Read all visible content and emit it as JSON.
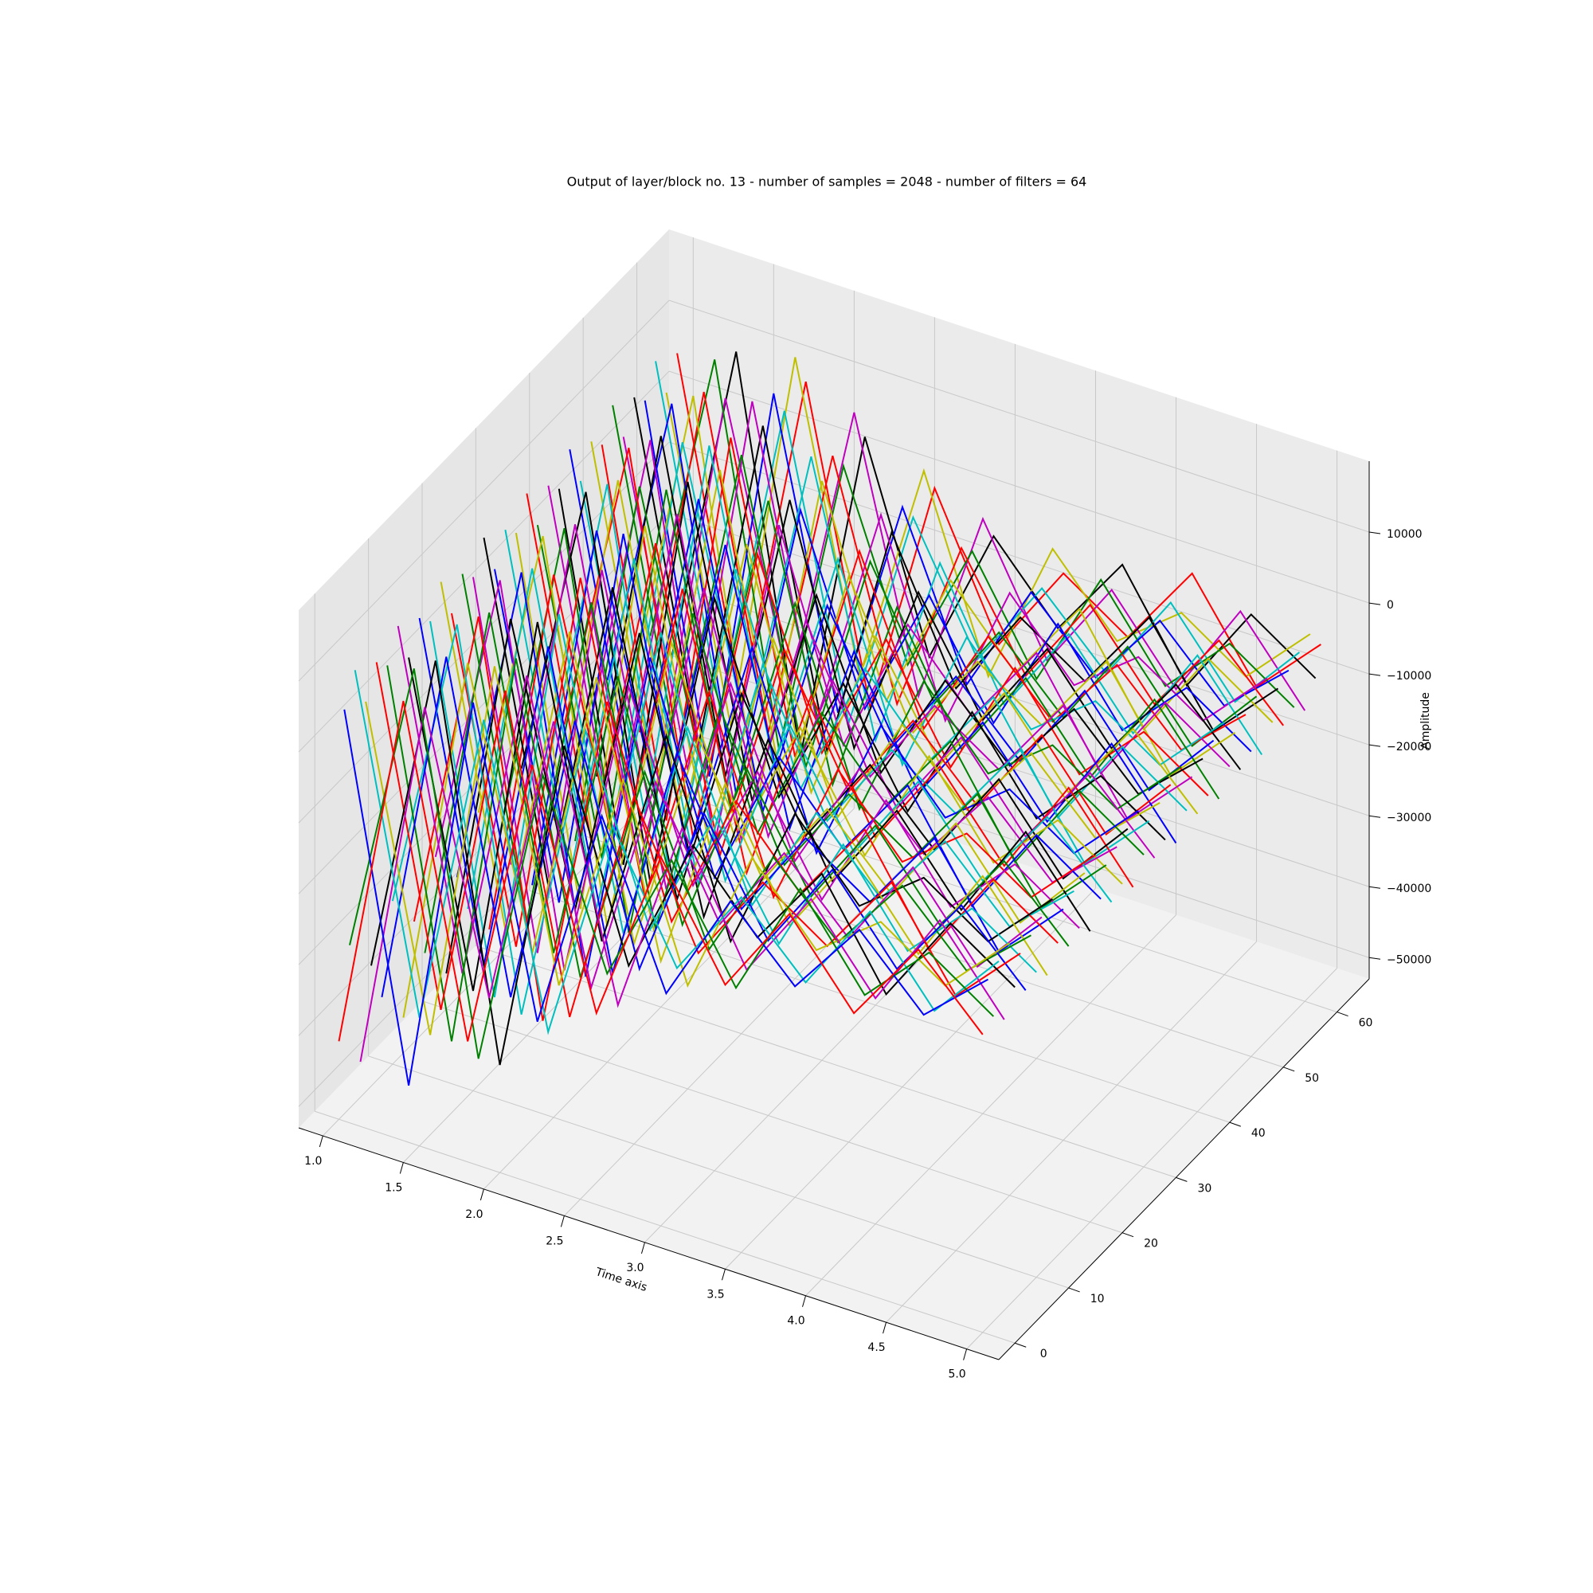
{
  "chart_data": {
    "type": "line3d",
    "title": "Output of layer/block no. 13 - number of samples = 2048 - number of filters = 64",
    "xlabel": "Time axis",
    "zlabel": "Amplitude",
    "xlim": [
      0.85,
      5.2
    ],
    "ylim": [
      -3,
      66
    ],
    "zlim": [
      -53000,
      20000
    ],
    "xticks": [
      {
        "value": 1,
        "label": "1.0"
      },
      {
        "value": 1.5,
        "label": "1.5"
      },
      {
        "value": 2,
        "label": "2.0"
      },
      {
        "value": 2.5,
        "label": "2.5"
      },
      {
        "value": 3,
        "label": "3.0"
      },
      {
        "value": 3.5,
        "label": "3.5"
      },
      {
        "value": 4,
        "label": "4.0"
      },
      {
        "value": 4.5,
        "label": "4.5"
      },
      {
        "value": 5,
        "label": "5.0"
      }
    ],
    "yticks": [
      0,
      10,
      20,
      30,
      40,
      50,
      60
    ],
    "zticks": [
      {
        "value": -50000,
        "label": "−50000"
      },
      {
        "value": -40000,
        "label": "−40000"
      },
      {
        "value": -30000,
        "label": "−30000"
      },
      {
        "value": -20000,
        "label": "−20000"
      },
      {
        "value": -10000,
        "label": "−10000"
      },
      0,
      10000
    ],
    "grid": true,
    "x": [
      1,
      1.4,
      1.8,
      2.2,
      2.6,
      3,
      3.4,
      3.8,
      4.2,
      4.6,
      5
    ],
    "series": [
      {
        "filter": 0,
        "color": "#ff0000",
        "values": [
          -42000,
          9000,
          -36000,
          6000,
          -26000,
          -1000,
          -16000,
          -3000,
          -14000,
          -2000,
          -11000
        ]
      },
      {
        "filter": 1,
        "color": "#0000ff",
        "values": [
          4000,
          -46000,
          11000,
          -31000,
          1000,
          -21000,
          -5000,
          -14000,
          -3000,
          -12000,
          -4000
        ]
      },
      {
        "filter": 2,
        "color": "#008000",
        "values": [
          -30000,
          12000,
          -40000,
          3000,
          -22000,
          -3000,
          -18000,
          -1000,
          -13000,
          -4000,
          -10000
        ]
      },
      {
        "filter": 3,
        "color": "#00bfbf",
        "values": [
          8000,
          -38000,
          7000,
          -34000,
          -2000,
          -19000,
          -6000,
          -15000,
          -2000,
          -13000,
          -3000
        ]
      },
      {
        "filter": 4,
        "color": "#bf00bf",
        "values": [
          -48000,
          5000,
          -33000,
          9000,
          -28000,
          0,
          -17000,
          -4000,
          -15000,
          -1000,
          -12000
        ]
      },
      {
        "filter": 5,
        "color": "#bfbf00",
        "values": [
          2000,
          -42000,
          13000,
          -29000,
          3000,
          -23000,
          -2000,
          -12000,
          -5000,
          -11000,
          -2000
        ]
      },
      {
        "filter": 6,
        "color": "#000000",
        "values": [
          -36000,
          10000,
          -44000,
          4000,
          -24000,
          -4000,
          -14000,
          -2000,
          -16000,
          -3000,
          -9000
        ]
      },
      {
        "filter": 7,
        "color": "#ff0000",
        "values": [
          6000,
          -40000,
          8000,
          -35000,
          -1000,
          -20000,
          -7000,
          -13000,
          -1000,
          -14000,
          -5000
        ]
      },
      {
        "filter": 8,
        "color": "#0000ff",
        "values": [
          -42000,
          9000,
          -36000,
          6000,
          -26000,
          -1000,
          -16000,
          -3000,
          -14000,
          -2000,
          -11000
        ]
      },
      {
        "filter": 9,
        "color": "#008000",
        "values": [
          4000,
          -46000,
          11000,
          -31000,
          1000,
          -21000,
          -5000,
          -14000,
          -3000,
          -12000,
          -4000
        ]
      },
      {
        "filter": 10,
        "color": "#00bfbf",
        "values": [
          -30000,
          12000,
          -40000,
          3000,
          -22000,
          -3000,
          -18000,
          -1000,
          -13000,
          -4000,
          -10000
        ]
      },
      {
        "filter": 11,
        "color": "#bf00bf",
        "values": [
          8000,
          -38000,
          7000,
          -34000,
          -2000,
          -19000,
          -6000,
          -15000,
          -2000,
          -13000,
          -3000
        ]
      },
      {
        "filter": 12,
        "color": "#bfbf00",
        "values": [
          -48000,
          5000,
          -33000,
          9000,
          -28000,
          0,
          -17000,
          -4000,
          -15000,
          -1000,
          -12000
        ]
      },
      {
        "filter": 13,
        "color": "#000000",
        "values": [
          2000,
          -42000,
          13000,
          -29000,
          3000,
          -23000,
          -2000,
          -12000,
          -5000,
          -11000,
          -2000
        ]
      },
      {
        "filter": 14,
        "color": "#ff0000",
        "values": [
          -36000,
          10000,
          -44000,
          4000,
          -24000,
          -4000,
          -14000,
          -2000,
          -16000,
          -3000,
          -9000
        ]
      },
      {
        "filter": 15,
        "color": "#0000ff",
        "values": [
          6000,
          -40000,
          8000,
          -35000,
          -1000,
          -20000,
          -7000,
          -13000,
          -1000,
          -14000,
          -5000
        ]
      },
      {
        "filter": 16,
        "color": "#008000",
        "values": [
          -42000,
          9000,
          -36000,
          6000,
          -26000,
          -1000,
          -16000,
          -3000,
          -14000,
          -2000,
          -11000
        ]
      },
      {
        "filter": 17,
        "color": "#00bfbf",
        "values": [
          4000,
          -46000,
          11000,
          -31000,
          1000,
          -21000,
          -5000,
          -14000,
          -3000,
          -12000,
          -4000
        ]
      },
      {
        "filter": 18,
        "color": "#bf00bf",
        "values": [
          -30000,
          12000,
          -40000,
          3000,
          -22000,
          -3000,
          -18000,
          -1000,
          -13000,
          -4000,
          -10000
        ]
      },
      {
        "filter": 19,
        "color": "#bfbf00",
        "values": [
          8000,
          -38000,
          7000,
          -34000,
          -2000,
          -19000,
          -6000,
          -15000,
          -2000,
          -13000,
          -3000
        ]
      },
      {
        "filter": 20,
        "color": "#000000",
        "values": [
          -48000,
          5000,
          -33000,
          9000,
          -28000,
          0,
          -17000,
          -4000,
          -15000,
          -1000,
          -12000
        ]
      },
      {
        "filter": 21,
        "color": "#ff0000",
        "values": [
          2000,
          -42000,
          13000,
          -29000,
          3000,
          -23000,
          -2000,
          -12000,
          -5000,
          -11000,
          -2000
        ]
      },
      {
        "filter": 22,
        "color": "#0000ff",
        "values": [
          -36000,
          10000,
          -44000,
          4000,
          -24000,
          -4000,
          -14000,
          -2000,
          -16000,
          -3000,
          -9000
        ]
      },
      {
        "filter": 23,
        "color": "#008000",
        "values": [
          6000,
          -40000,
          8000,
          -35000,
          -1000,
          -20000,
          -7000,
          -13000,
          -1000,
          -14000,
          -5000
        ]
      },
      {
        "filter": 24,
        "color": "#00bfbf",
        "values": [
          -42000,
          9000,
          -36000,
          6000,
          -26000,
          -1000,
          -16000,
          -3000,
          -14000,
          -2000,
          -11000
        ]
      },
      {
        "filter": 25,
        "color": "#bf00bf",
        "values": [
          4000,
          -46000,
          11000,
          -31000,
          1000,
          -21000,
          -5000,
          -14000,
          -3000,
          -12000,
          -4000
        ]
      },
      {
        "filter": 26,
        "color": "#bfbf00",
        "values": [
          -30000,
          12000,
          -40000,
          3000,
          -22000,
          -3000,
          -18000,
          -1000,
          -13000,
          -4000,
          -10000
        ]
      },
      {
        "filter": 27,
        "color": "#000000",
        "values": [
          8000,
          -38000,
          7000,
          -34000,
          -2000,
          -19000,
          -6000,
          -15000,
          -2000,
          -13000,
          -3000
        ]
      },
      {
        "filter": 28,
        "color": "#ff0000",
        "values": [
          -48000,
          5000,
          -33000,
          9000,
          -28000,
          0,
          -17000,
          -4000,
          -15000,
          -1000,
          -12000
        ]
      },
      {
        "filter": 29,
        "color": "#0000ff",
        "values": [
          2000,
          -42000,
          13000,
          -29000,
          3000,
          -23000,
          -2000,
          -12000,
          -5000,
          -11000,
          -2000
        ]
      },
      {
        "filter": 30,
        "color": "#008000",
        "values": [
          -36000,
          10000,
          -44000,
          4000,
          -24000,
          -4000,
          -14000,
          -2000,
          -16000,
          -3000,
          -9000
        ]
      },
      {
        "filter": 31,
        "color": "#00bfbf",
        "values": [
          6000,
          -40000,
          8000,
          -35000,
          -1000,
          -20000,
          -7000,
          -13000,
          -1000,
          -14000,
          -5000
        ]
      },
      {
        "filter": 32,
        "color": "#bf00bf",
        "values": [
          -42000,
          9000,
          -36000,
          6000,
          -26000,
          -1000,
          -16000,
          -3000,
          -14000,
          -2000,
          -11000
        ]
      },
      {
        "filter": 33,
        "color": "#bfbf00",
        "values": [
          4000,
          -46000,
          11000,
          -31000,
          1000,
          -21000,
          -5000,
          -14000,
          -3000,
          -12000,
          -4000
        ]
      },
      {
        "filter": 34,
        "color": "#000000",
        "values": [
          -30000,
          12000,
          -40000,
          3000,
          -22000,
          -3000,
          -18000,
          -1000,
          -13000,
          -4000,
          -10000
        ]
      },
      {
        "filter": 35,
        "color": "#ff0000",
        "values": [
          8000,
          -38000,
          7000,
          -34000,
          -2000,
          -19000,
          -6000,
          -15000,
          -2000,
          -13000,
          -3000
        ]
      },
      {
        "filter": 36,
        "color": "#0000ff",
        "values": [
          -48000,
          5000,
          -33000,
          9000,
          -28000,
          0,
          -17000,
          -4000,
          -15000,
          -1000,
          -12000
        ]
      },
      {
        "filter": 37,
        "color": "#008000",
        "values": [
          2000,
          -42000,
          13000,
          -29000,
          3000,
          -23000,
          -2000,
          -12000,
          -5000,
          -11000,
          -2000
        ]
      },
      {
        "filter": 38,
        "color": "#00bfbf",
        "values": [
          -36000,
          10000,
          -44000,
          4000,
          -24000,
          -4000,
          -14000,
          -2000,
          -16000,
          -3000,
          -9000
        ]
      },
      {
        "filter": 39,
        "color": "#bf00bf",
        "values": [
          6000,
          -40000,
          8000,
          -35000,
          -1000,
          -20000,
          -7000,
          -13000,
          -1000,
          -14000,
          -5000
        ]
      },
      {
        "filter": 40,
        "color": "#bfbf00",
        "values": [
          -42000,
          9000,
          -36000,
          6000,
          -26000,
          -1000,
          -16000,
          -3000,
          -14000,
          -2000,
          -11000
        ]
      },
      {
        "filter": 41,
        "color": "#000000",
        "values": [
          4000,
          -46000,
          11000,
          -31000,
          1000,
          -21000,
          -5000,
          -14000,
          -3000,
          -12000,
          -4000
        ]
      },
      {
        "filter": 42,
        "color": "#ff0000",
        "values": [
          -30000,
          12000,
          -40000,
          3000,
          -22000,
          -3000,
          -18000,
          -1000,
          -13000,
          -4000,
          -10000
        ]
      },
      {
        "filter": 43,
        "color": "#0000ff",
        "values": [
          8000,
          -38000,
          7000,
          -34000,
          -2000,
          -19000,
          -6000,
          -15000,
          -2000,
          -13000,
          -3000
        ]
      },
      {
        "filter": 44,
        "color": "#008000",
        "values": [
          -48000,
          5000,
          -33000,
          9000,
          -28000,
          0,
          -17000,
          -4000,
          -15000,
          -1000,
          -12000
        ]
      },
      {
        "filter": 45,
        "color": "#00bfbf",
        "values": [
          2000,
          -42000,
          13000,
          -29000,
          3000,
          -23000,
          -2000,
          -12000,
          -5000,
          -11000,
          -2000
        ]
      },
      {
        "filter": 46,
        "color": "#bf00bf",
        "values": [
          -36000,
          10000,
          -44000,
          4000,
          -24000,
          -4000,
          -14000,
          -2000,
          -16000,
          -3000,
          -9000
        ]
      },
      {
        "filter": 47,
        "color": "#bfbf00",
        "values": [
          6000,
          -40000,
          8000,
          -35000,
          -1000,
          -20000,
          -7000,
          -13000,
          -1000,
          -14000,
          -5000
        ]
      },
      {
        "filter": 48,
        "color": "#000000",
        "values": [
          -42000,
          9000,
          -36000,
          6000,
          -26000,
          -1000,
          -16000,
          -3000,
          -14000,
          -2000,
          -11000
        ]
      },
      {
        "filter": 49,
        "color": "#ff0000",
        "values": [
          4000,
          -46000,
          11000,
          -31000,
          1000,
          -21000,
          -5000,
          -14000,
          -3000,
          -12000,
          -4000
        ]
      },
      {
        "filter": 50,
        "color": "#0000ff",
        "values": [
          -30000,
          12000,
          -40000,
          3000,
          -22000,
          -3000,
          -18000,
          -1000,
          -13000,
          -4000,
          -10000
        ]
      },
      {
        "filter": 51,
        "color": "#008000",
        "values": [
          8000,
          -38000,
          7000,
          -34000,
          -2000,
          -19000,
          -6000,
          -15000,
          -2000,
          -13000,
          -3000
        ]
      },
      {
        "filter": 52,
        "color": "#00bfbf",
        "values": [
          -48000,
          5000,
          -33000,
          9000,
          -28000,
          0,
          -17000,
          -4000,
          -15000,
          -1000,
          -12000
        ]
      },
      {
        "filter": 53,
        "color": "#bf00bf",
        "values": [
          2000,
          -42000,
          13000,
          -29000,
          3000,
          -23000,
          -2000,
          -12000,
          -5000,
          -11000,
          -2000
        ]
      },
      {
        "filter": 54,
        "color": "#bfbf00",
        "values": [
          -36000,
          10000,
          -44000,
          4000,
          -24000,
          -4000,
          -14000,
          -2000,
          -16000,
          -3000,
          -9000
        ]
      },
      {
        "filter": 55,
        "color": "#000000",
        "values": [
          6000,
          -40000,
          8000,
          -35000,
          -1000,
          -20000,
          -7000,
          -13000,
          -1000,
          -14000,
          -5000
        ]
      },
      {
        "filter": 56,
        "color": "#ff0000",
        "values": [
          -42000,
          9000,
          -36000,
          6000,
          -26000,
          -1000,
          -16000,
          -3000,
          -14000,
          -2000,
          -11000
        ]
      },
      {
        "filter": 57,
        "color": "#0000ff",
        "values": [
          4000,
          -46000,
          11000,
          -31000,
          1000,
          -21000,
          -5000,
          -14000,
          -3000,
          -12000,
          -4000
        ]
      },
      {
        "filter": 58,
        "color": "#008000",
        "values": [
          -30000,
          12000,
          -40000,
          3000,
          -22000,
          -3000,
          -18000,
          -1000,
          -13000,
          -4000,
          -10000
        ]
      },
      {
        "filter": 59,
        "color": "#00bfbf",
        "values": [
          8000,
          -38000,
          7000,
          -34000,
          -2000,
          -19000,
          -6000,
          -15000,
          -2000,
          -13000,
          -3000
        ]
      },
      {
        "filter": 60,
        "color": "#bf00bf",
        "values": [
          -48000,
          5000,
          -33000,
          9000,
          -28000,
          0,
          -17000,
          -4000,
          -15000,
          -1000,
          -12000
        ]
      },
      {
        "filter": 61,
        "color": "#bfbf00",
        "values": [
          2000,
          -42000,
          13000,
          -29000,
          3000,
          -23000,
          -2000,
          -12000,
          -5000,
          -11000,
          -2000
        ]
      },
      {
        "filter": 62,
        "color": "#000000",
        "values": [
          -36000,
          10000,
          -44000,
          4000,
          -24000,
          -4000,
          -14000,
          -2000,
          -16000,
          -3000,
          -9000
        ]
      },
      {
        "filter": 63,
        "color": "#ff0000",
        "values": [
          6000,
          -40000,
          8000,
          -35000,
          -1000,
          -20000,
          -7000,
          -13000,
          -1000,
          -14000,
          -5000
        ]
      }
    ]
  }
}
